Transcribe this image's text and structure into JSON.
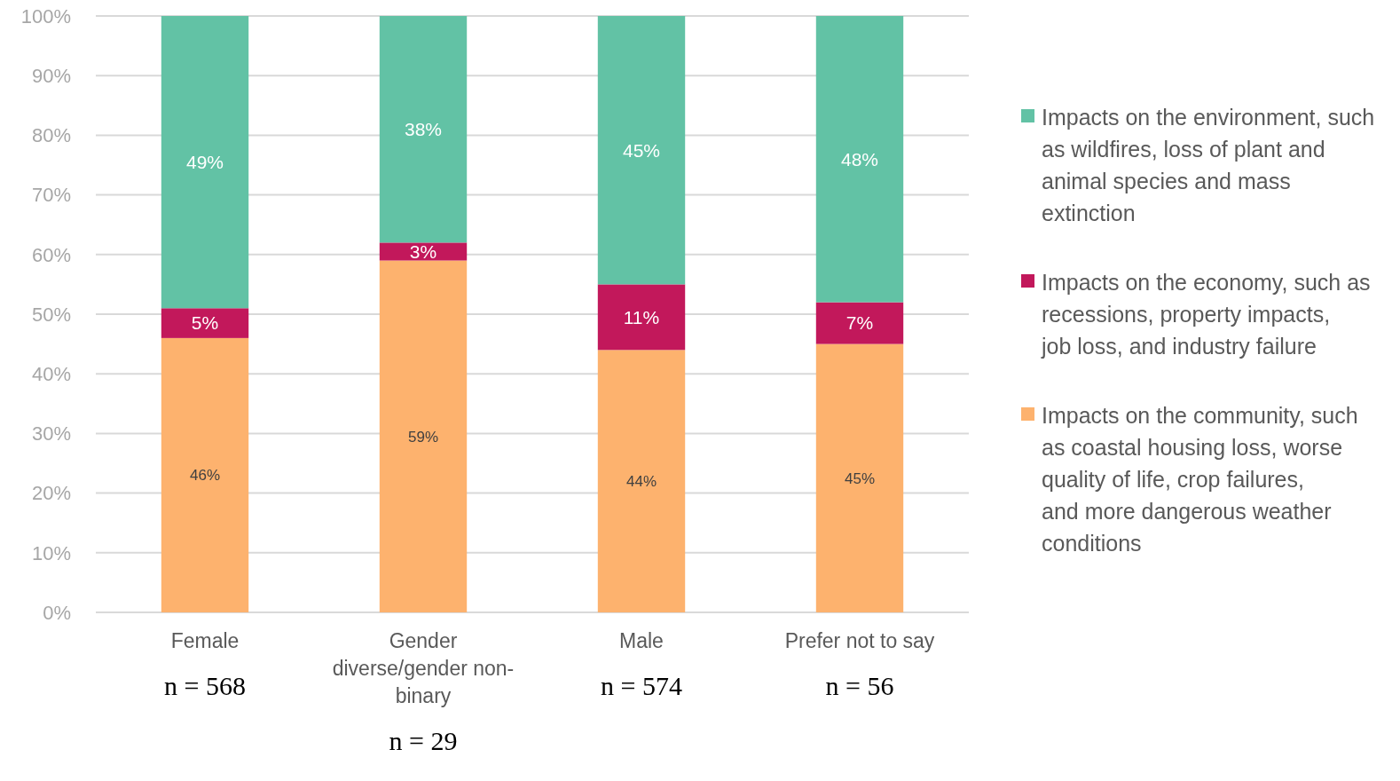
{
  "chart_data": {
    "type": "bar",
    "stacked": true,
    "categories": [
      "Female",
      "Gender diverse/gender non-binary",
      "Male",
      "Prefer not to say"
    ],
    "series": [
      {
        "name": "Impacts on the community, such as coastal housing loss, worse quality of life, crop failures, and more dangerous weather conditions",
        "color": "#fdb26e",
        "values": [
          46,
          59,
          44,
          45
        ],
        "value_labels": [
          "46%",
          "59%",
          "44%",
          "45%"
        ]
      },
      {
        "name": "Impacts on the economy, such as recessions, property impacts, job loss, and industry failure",
        "color": "#c2185b",
        "values": [
          5,
          3,
          11,
          7
        ],
        "value_labels": [
          "5%",
          "3%",
          "11%",
          "7%"
        ]
      },
      {
        "name": "Impacts on the environment, such as wildfires, loss of plant and animal species and mass extinction",
        "color": "#62c2a5",
        "values": [
          49,
          38,
          45,
          48
        ],
        "value_labels": [
          "49%",
          "38%",
          "45%",
          "48%"
        ]
      }
    ],
    "ylim": [
      0,
      100
    ],
    "yticks": [
      {
        "value": 0,
        "label": "0%"
      },
      {
        "value": 10,
        "label": "10%"
      },
      {
        "value": 20,
        "label": "20%"
      },
      {
        "value": 30,
        "label": "30%"
      },
      {
        "value": 40,
        "label": "40%"
      },
      {
        "value": 50,
        "label": "50%"
      },
      {
        "value": 60,
        "label": "60%"
      },
      {
        "value": 70,
        "label": "70%"
      },
      {
        "value": 80,
        "label": "80%"
      },
      {
        "value": 90,
        "label": "90%"
      },
      {
        "value": 100,
        "label": "100%"
      }
    ],
    "grid": "y",
    "legend": "right",
    "annotations": [
      "n = 568",
      "n = 29",
      "n = 574",
      "n = 56"
    ]
  }
}
